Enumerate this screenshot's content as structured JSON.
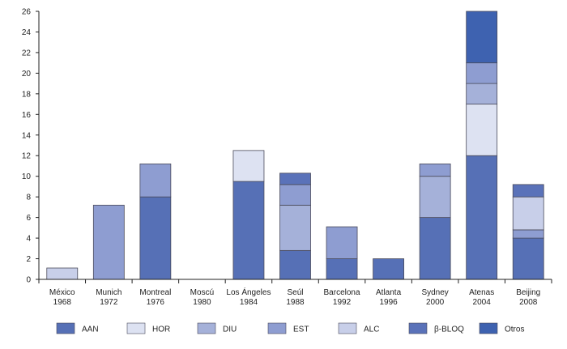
{
  "chart_data": {
    "type": "bar",
    "stacked": true,
    "title": "",
    "xlabel": "",
    "ylabel": "",
    "ylim": [
      0,
      26
    ],
    "yticks": [
      0,
      2,
      4,
      6,
      8,
      10,
      12,
      14,
      16,
      18,
      20,
      22,
      24,
      26
    ],
    "grid": false,
    "legend_position": "bottom",
    "categories": [
      [
        "México",
        "1968"
      ],
      [
        "Munich",
        "1972"
      ],
      [
        "Montreal",
        "1976"
      ],
      [
        "Moscú",
        "1980"
      ],
      [
        "Los Ángeles",
        "1984"
      ],
      [
        "Seúl",
        "1988"
      ],
      [
        "Barcelona",
        "1992"
      ],
      [
        "Atlanta",
        "1996"
      ],
      [
        "Sydney",
        "2000"
      ],
      [
        "Atenas",
        "2004"
      ],
      [
        "Beijing",
        "2008"
      ]
    ],
    "series": [
      {
        "name": "AAN",
        "color": "#5670b6",
        "values": [
          0,
          0,
          8,
          0,
          9.5,
          2.8,
          2,
          2,
          6,
          12,
          4
        ]
      },
      {
        "name": "HOR",
        "color": "#dde2f2",
        "values": [
          0,
          0,
          0,
          0,
          3,
          0,
          0,
          0,
          0,
          5,
          0
        ]
      },
      {
        "name": "DIU",
        "color": "#a5b1d9",
        "values": [
          0,
          0,
          0,
          0,
          0,
          4.4,
          0,
          0,
          4,
          2,
          0
        ]
      },
      {
        "name": "EST",
        "color": "#8e9dd1",
        "values": [
          0,
          7.2,
          3.2,
          0,
          0,
          2,
          3.1,
          0,
          1.2,
          2,
          0.8
        ]
      },
      {
        "name": "ALC",
        "color": "#c8cfe9",
        "values": [
          1.1,
          0,
          0,
          0,
          0,
          0,
          0,
          0,
          0,
          0,
          3.2
        ]
      },
      {
        "name": "β-BLOQ",
        "color": "#5a72b9",
        "values": [
          0,
          0,
          0,
          0,
          0,
          1.1,
          0,
          0,
          0,
          0,
          1.2
        ]
      },
      {
        "name": "Otros",
        "color": "#3e62b0",
        "values": [
          0,
          0,
          0,
          0,
          0,
          0,
          0,
          0,
          0,
          5,
          0
        ]
      }
    ]
  }
}
